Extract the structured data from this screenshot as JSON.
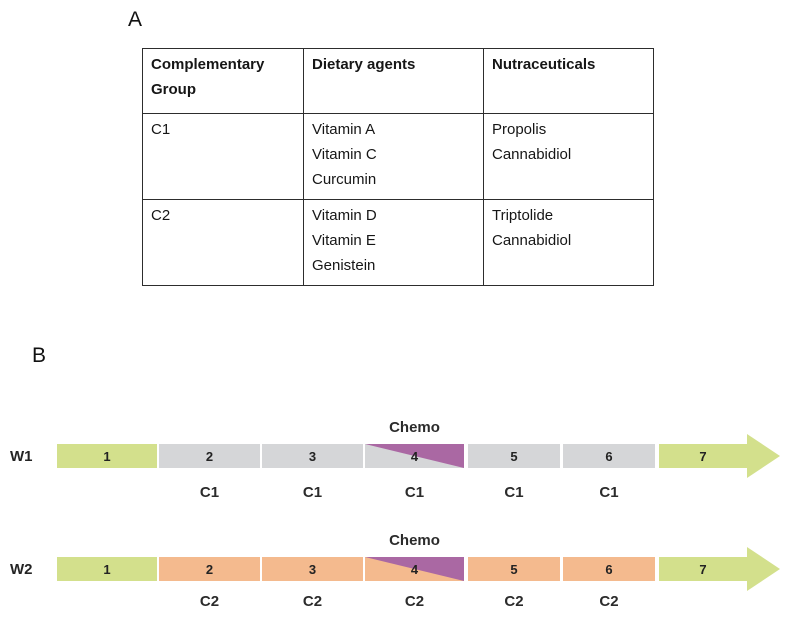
{
  "figure": {
    "panel_a": {
      "label": "A",
      "table": {
        "headers": [
          "Complementary\nGroup",
          "Dietary agents",
          "Nutraceuticals"
        ],
        "rows": [
          {
            "cells": [
              "C1",
              "Vitamin A\nVitamin C\nCurcumin",
              "Propolis\nCannabidiol"
            ]
          },
          {
            "cells": [
              "C2",
              "Vitamin D\nVitamin E\nGenistein",
              "Triptolide\nCannabidiol"
            ]
          }
        ]
      }
    },
    "panel_b": {
      "label": "B",
      "timelines": [
        {
          "name": "W1",
          "chemo_label": "Chemo",
          "chemo_week": "4",
          "segments": [
            "1",
            "2",
            "3",
            "4",
            "5",
            "6",
            "7"
          ],
          "agent_labels": [
            "C1",
            "C1",
            "C1",
            "C1",
            "C1"
          ],
          "treatment_week_color": "#d5d6d8"
        },
        {
          "name": "W2",
          "chemo_label": "Chemo",
          "chemo_week": "4",
          "segments": [
            "1",
            "2",
            "3",
            "4",
            "5",
            "6",
            "7"
          ],
          "agent_labels": [
            "C2",
            "C2",
            "C2",
            "C2",
            "C2"
          ],
          "treatment_week_color": "#f4ba8e"
        }
      ],
      "colors": {
        "start_end_weeks": "#d3e08c",
        "w1_treatment_weeks": "#d5d6d8",
        "w2_treatment_weeks": "#f4ba8e",
        "chemo_marker": "#aa68a3"
      }
    }
  }
}
